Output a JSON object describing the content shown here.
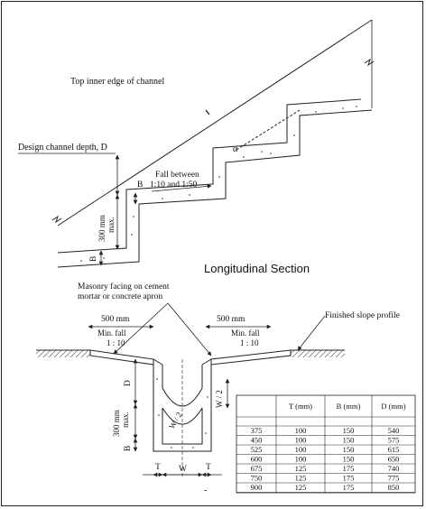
{
  "top_diagram": {
    "top_edge_label": "Top inner edge of channel",
    "depth_label": "Design channel depth, D",
    "fall_label_1": "Fall between",
    "fall_label_2": "1:10 and 1:50",
    "b_label": "B",
    "b_label_2": "B",
    "step_height_1": "300 mm",
    "step_height_2": "max.",
    "alpha_label": "α",
    "section_title": "Longitudinal Section"
  },
  "bottom_diagram": {
    "masonry_label_1": "Masonry facing on cement",
    "masonry_label_2": "mortar or concrete apron",
    "left_width": "500 mm",
    "right_width": "500 mm",
    "slope_label": "Finished slope profile",
    "min_fall_left_1": "Min. fall",
    "min_fall_left_2": "1 : 10",
    "min_fall_right_1": "Min. fall",
    "min_fall_right_2": "1 : 10",
    "d_label": "D",
    "w2_label": "W / 2",
    "w2_radius_label": "W / 2",
    "height_1": "300 mm",
    "height_2": "max.",
    "b_label": "B",
    "t_left": "T",
    "w_label": "W",
    "t_right": "T",
    "dash": "-"
  },
  "table": {
    "headers": [
      "",
      "T (mm)",
      "B (mm)",
      "D (mm)"
    ],
    "rows": [
      [
        "375",
        "100",
        "150",
        "540"
      ],
      [
        "450",
        "100",
        "150",
        "575"
      ],
      [
        "525",
        "100",
        "150",
        "615"
      ],
      [
        "600",
        "100",
        "150",
        "650"
      ],
      [
        "675",
        "125",
        "175",
        "740"
      ],
      [
        "750",
        "125",
        "175",
        "775"
      ],
      [
        "900",
        "125",
        "175",
        "850"
      ]
    ]
  }
}
